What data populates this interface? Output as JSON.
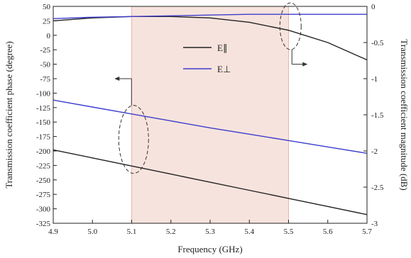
{
  "chart_data": {
    "type": "line",
    "xlabel": "Frequency (GHz)",
    "ylabel_left": "Transmission coefficient phase (degree)",
    "ylabel_right": "Transmission coefficient magnitude (dB)",
    "xlim": [
      4.9,
      5.7
    ],
    "ylim_left": [
      -325,
      50
    ],
    "ylim_right": [
      -3,
      0
    ],
    "x_ticks": [
      "4.9",
      "5.0",
      "5.1",
      "5.2",
      "5.3",
      "5.4",
      "5.5",
      "5.6",
      "5.7"
    ],
    "y_ticks_left": [
      "50",
      "25",
      "0",
      "-25",
      "-50",
      "-75",
      "-100",
      "-125",
      "-150",
      "-175",
      "-200",
      "-225",
      "-250",
      "-275",
      "-300",
      "-325"
    ],
    "y_ticks_right": [
      "0",
      "-0.5",
      "-1",
      "-1.5",
      "-2",
      "-2.5",
      "-3"
    ],
    "highlight_band": [
      5.1,
      5.5
    ],
    "grid": false,
    "legend_position": "top-center",
    "legend": [
      "E∥",
      "E⊥"
    ],
    "colors": {
      "parallel": "#222222",
      "perpendicular": "#3d3dcc",
      "band": "#f7e3dd"
    },
    "series": [
      {
        "key": "phase_parallel",
        "axis": "left",
        "color": "#222222",
        "x": [
          4.9,
          5.0,
          5.1,
          5.2,
          5.3,
          5.4,
          5.5,
          5.6,
          5.7
        ],
        "y": [
          -198,
          -212,
          -226,
          -240,
          -254,
          -268,
          -282,
          -296,
          -310
        ]
      },
      {
        "key": "phase_perpendicular",
        "axis": "left",
        "color": "#3d3dcc",
        "x": [
          4.9,
          5.0,
          5.1,
          5.2,
          5.3,
          5.4,
          5.5,
          5.6,
          5.7
        ],
        "y": [
          -112,
          -124,
          -136,
          -148,
          -160,
          -171,
          -182,
          -193,
          -204
        ]
      },
      {
        "key": "magnitude_parallel",
        "axis": "right",
        "color": "#222222",
        "x": [
          4.9,
          5.0,
          5.1,
          5.2,
          5.3,
          5.4,
          5.5,
          5.6,
          5.7
        ],
        "y": [
          -0.2,
          -0.16,
          -0.14,
          -0.14,
          -0.16,
          -0.22,
          -0.33,
          -0.5,
          -0.74
        ]
      },
      {
        "key": "magnitude_perpendicular",
        "axis": "right",
        "color": "#3d3dcc",
        "x": [
          4.9,
          5.0,
          5.1,
          5.2,
          5.3,
          5.4,
          5.5,
          5.6,
          5.7
        ],
        "y": [
          -0.17,
          -0.15,
          -0.14,
          -0.13,
          -0.12,
          -0.11,
          -0.11,
          -0.11,
          -0.11
        ]
      }
    ]
  }
}
